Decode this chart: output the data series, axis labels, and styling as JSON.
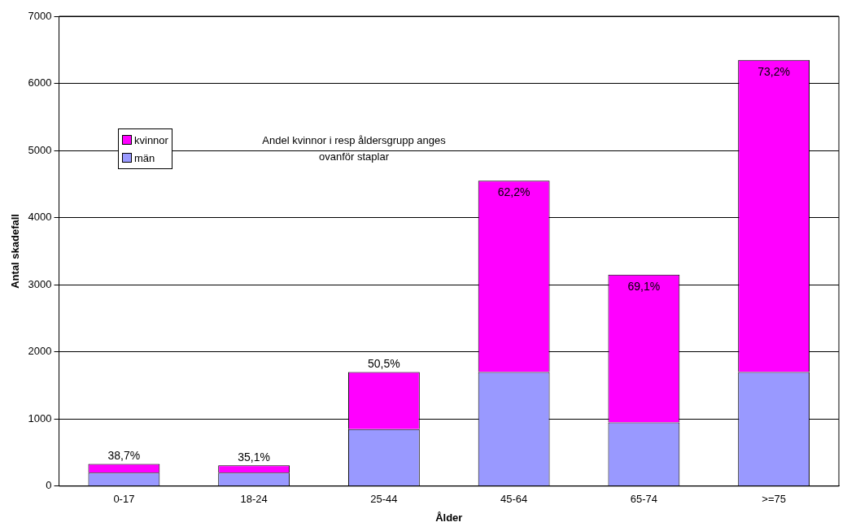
{
  "chart_data": {
    "type": "bar",
    "stacked": true,
    "xlabel": "Ålder",
    "ylabel": "Antal skadefall",
    "categories": [
      "0-17",
      "18-24",
      "25-44",
      "45-64",
      "65-74",
      ">=75"
    ],
    "series": [
      {
        "name": "män",
        "color": "#9999ff",
        "values": [
          200,
          200,
          850,
          1700,
          950,
          1700
        ]
      },
      {
        "name": "kvinnor",
        "color": "#ff00ff",
        "values": [
          130,
          110,
          850,
          2850,
          2200,
          4650
        ]
      }
    ],
    "ylim": [
      0,
      7000
    ],
    "yticks": [
      0,
      1000,
      2000,
      3000,
      4000,
      5000,
      6000,
      7000
    ],
    "grid": "y",
    "legend": "left",
    "annotations": [
      "Andel kvinnor i resp åldersgrupp anges ovanför staplar",
      {
        "text": "38,7%",
        "x": "0-17",
        "y": 330
      },
      {
        "text": "35,1%",
        "x": "18-24",
        "y": 310
      },
      {
        "text": "50,5%",
        "x": "25-44",
        "y": 1700
      },
      {
        "text": "62,2%",
        "x": "45-64",
        "y": 4550
      },
      {
        "text": "69,1%",
        "x": "65-74",
        "y": 3150
      },
      {
        "text": "73,2%",
        "x": ">=75",
        "y": 6350
      }
    ]
  }
}
